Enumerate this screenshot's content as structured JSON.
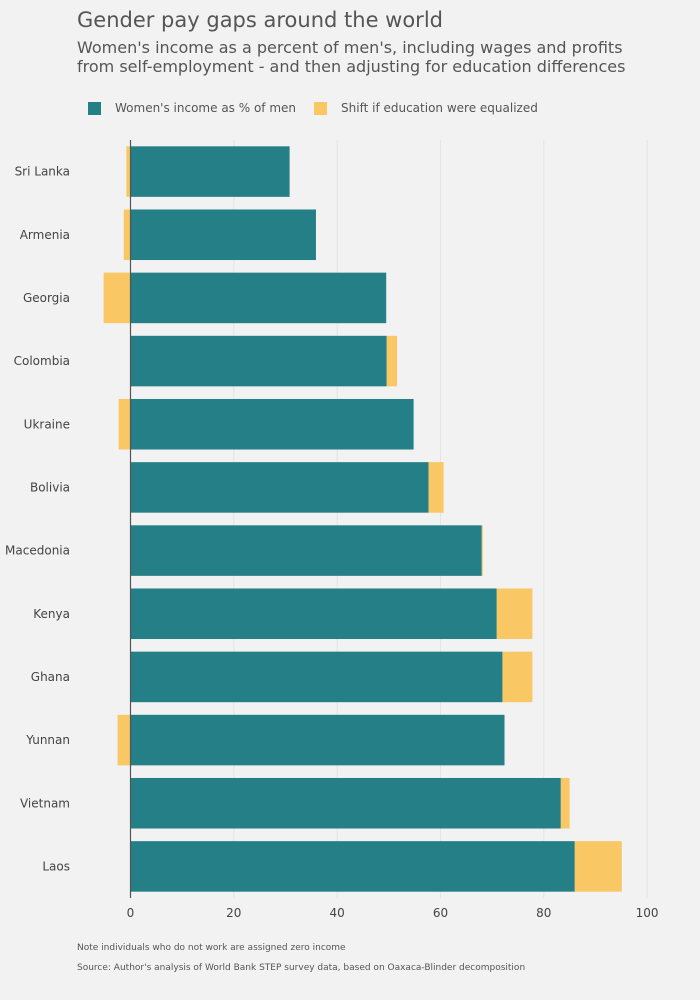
{
  "title": "Gender pay gaps around the world",
  "subtitle": "Women's income as a percent of men's, including wages and profits from self-employment - and then adjusting for education differences",
  "legend": {
    "women_label": "Women's income as % of men",
    "shift_label": "Shift if education were equalized"
  },
  "notes": {
    "note": "Note individuals who do not work are assigned zero income",
    "source": "Source: Author's analysis of World Bank STEP survey data, based on Oaxaca-Blinder decomposition"
  },
  "colors": {
    "women": "#257f86",
    "shift": "#f9c764",
    "grid": "#e3e3e3",
    "zero_line": "#555555",
    "background": "#f2f2f2"
  },
  "chart_data": {
    "type": "bar",
    "orientation": "horizontal",
    "barmode": "stacked",
    "categories": [
      "Sri Lanka",
      "Armenia",
      "Georgia",
      "Colombia",
      "Ukraine",
      "Bolivia",
      "Macedonia",
      "Kenya",
      "Ghana",
      "Yunnan",
      "Vietnam",
      "Laos"
    ],
    "series": [
      {
        "name": "Women's income as % of men",
        "values": [
          30.8,
          35.9,
          49.5,
          49.6,
          54.8,
          57.7,
          68.0,
          70.9,
          72.0,
          72.4,
          83.3,
          86.0
        ]
      },
      {
        "name": "Shift if education were equalized",
        "values": [
          -0.8,
          -1.3,
          -5.2,
          2.0,
          -2.3,
          2.9,
          0.2,
          6.9,
          5.8,
          -2.5,
          1.7,
          9.1
        ]
      }
    ],
    "xlim": [
      -8,
      103
    ],
    "xticks": [
      0,
      20,
      40,
      60,
      80,
      100
    ],
    "grid": true,
    "legend_position": "top-left"
  }
}
